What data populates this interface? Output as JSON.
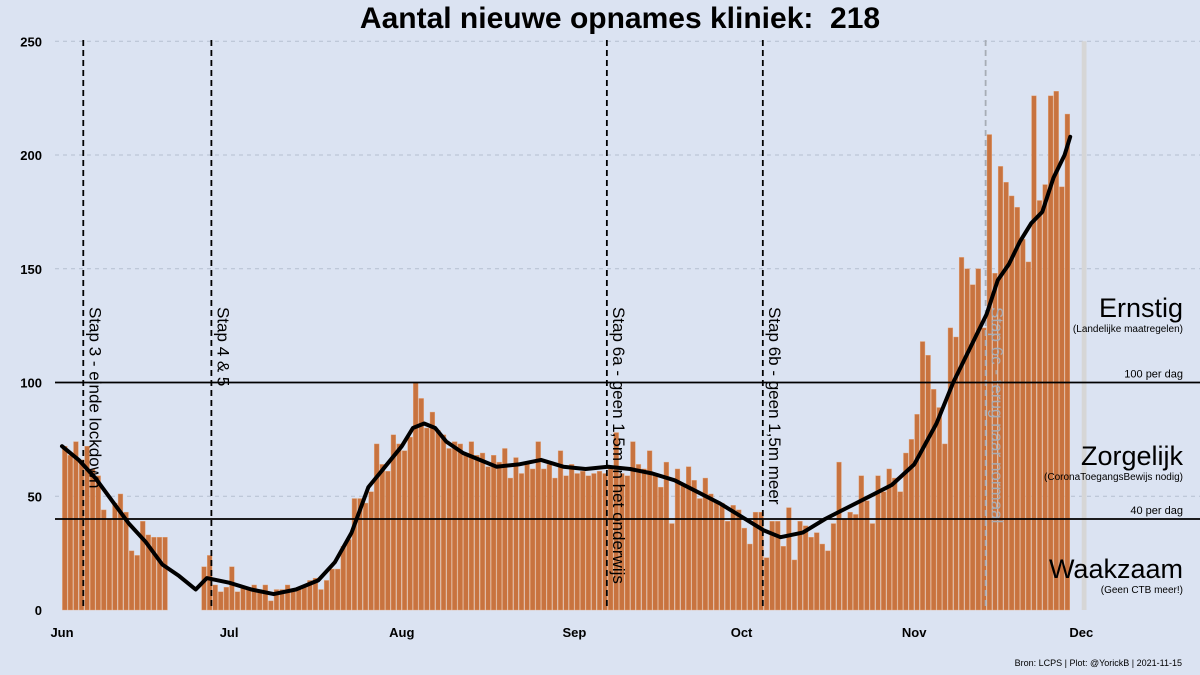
{
  "title": "Aantal nieuwe opnames kliniek:  218",
  "source": "Bron: LCPS | Plot: @YorickB |  2021-11-15",
  "colors": {
    "background": "#dbe3f2",
    "bar": "#c8733f",
    "bar_edge": "#e6a679",
    "projection": "#d6d6d6",
    "line": "#000000"
  },
  "chart_data": {
    "type": "bar",
    "x_start": "2021-06-01",
    "x_ticks": [
      "Jun",
      "Jul",
      "Aug",
      "Sep",
      "Oct",
      "Nov",
      "Dec"
    ],
    "ylim": [
      0,
      250
    ],
    "y_ticks": [
      0,
      50,
      100,
      150,
      200,
      250
    ],
    "grid": "horizontal dashed",
    "values": [
      72,
      68,
      74,
      66,
      72,
      62,
      59,
      44,
      40,
      47,
      51,
      43,
      26,
      24,
      39,
      33,
      32,
      32,
      32,
      null,
      null,
      null,
      null,
      null,
      null,
      19,
      24,
      11,
      8,
      10,
      19,
      8,
      10,
      10,
      11,
      9,
      11,
      4,
      9,
      9,
      11,
      8,
      10,
      10,
      13,
      14,
      9,
      13,
      18,
      18,
      28,
      31,
      49,
      49,
      47,
      52,
      73,
      64,
      61,
      77,
      73,
      70,
      76,
      100,
      93,
      80,
      87,
      79,
      77,
      71,
      74,
      73,
      68,
      74,
      68,
      69,
      63,
      68,
      65,
      71,
      58,
      67,
      60,
      65,
      62,
      74,
      62,
      64,
      58,
      70,
      59,
      64,
      60,
      61,
      59,
      60,
      61,
      60,
      63,
      78,
      60,
      59,
      74,
      64,
      62,
      70,
      60,
      54,
      65,
      38,
      62,
      55,
      63,
      57,
      49,
      58,
      51,
      48,
      47,
      39,
      46,
      44,
      36,
      29,
      43,
      43,
      23,
      39,
      39,
      28,
      45,
      22,
      39,
      37,
      32,
      34,
      29,
      26,
      38,
      65,
      40,
      43,
      42,
      59,
      48,
      38,
      59,
      52,
      62,
      58,
      52,
      69,
      75,
      86,
      118,
      112,
      97,
      89,
      73,
      124,
      120,
      155,
      150,
      143,
      150,
      124,
      209,
      148,
      195,
      188,
      182,
      177,
      163,
      153,
      226,
      180,
      187,
      226,
      228,
      186,
      218
    ],
    "projection": [
      null,
      null,
      null,
      null,
      null,
      null,
      null,
      null,
      null,
      null,
      null,
      null,
      null,
      null,
      null,
      null,
      null,
      null,
      null,
      null,
      null,
      null,
      null,
      null,
      null,
      null,
      null,
      null,
      null,
      null,
      null,
      null,
      null,
      null,
      null,
      null,
      null,
      null,
      null,
      null,
      null,
      null,
      null,
      null,
      null,
      null,
      null,
      null,
      null,
      null,
      null,
      null,
      null,
      null,
      null,
      null,
      null,
      null,
      null,
      null,
      null,
      null,
      null,
      null,
      null,
      null,
      null,
      null,
      null,
      null,
      null,
      null,
      null,
      null,
      null,
      null,
      null,
      null,
      null,
      null,
      null,
      null,
      null,
      null,
      null,
      null,
      null,
      null,
      null,
      null,
      null,
      null,
      null,
      null,
      null,
      null,
      null,
      null,
      null,
      null,
      null,
      null,
      null,
      null,
      null,
      null,
      null,
      null,
      null,
      null,
      null,
      null,
      null,
      null,
      null,
      null,
      null,
      null,
      null,
      null,
      null,
      null,
      null,
      null,
      null,
      null,
      null,
      null,
      null,
      null,
      null,
      null,
      null,
      null,
      null,
      null,
      null,
      null,
      null,
      null,
      null,
      null,
      null,
      null,
      null,
      null,
      null,
      null,
      null,
      null,
      null,
      null,
      null,
      null,
      null,
      null,
      null,
      null,
      null,
      null,
      null,
      null,
      null,
      null,
      null,
      null,
      null,
      null,
      null,
      null,
      null,
      null,
      null,
      null,
      null,
      null,
      null,
      null,
      null,
      null,
      null,
      null,
      null,
      250,
      null
    ],
    "average_7day": [
      {
        "day": 0,
        "v": 72
      },
      {
        "day": 3,
        "v": 66
      },
      {
        "day": 6,
        "v": 58
      },
      {
        "day": 9,
        "v": 48
      },
      {
        "day": 12,
        "v": 38
      },
      {
        "day": 15,
        "v": 30
      },
      {
        "day": 18,
        "v": 20
      },
      {
        "day": 21,
        "v": 15
      },
      {
        "day": 24,
        "v": 9
      },
      {
        "day": 26,
        "v": 14
      },
      {
        "day": 30,
        "v": 12
      },
      {
        "day": 34,
        "v": 9
      },
      {
        "day": 38,
        "v": 7
      },
      {
        "day": 42,
        "v": 9
      },
      {
        "day": 46,
        "v": 13
      },
      {
        "day": 49,
        "v": 21
      },
      {
        "day": 52,
        "v": 34
      },
      {
        "day": 55,
        "v": 54
      },
      {
        "day": 58,
        "v": 63
      },
      {
        "day": 61,
        "v": 72
      },
      {
        "day": 63,
        "v": 80
      },
      {
        "day": 65,
        "v": 82
      },
      {
        "day": 67,
        "v": 80
      },
      {
        "day": 69,
        "v": 74
      },
      {
        "day": 72,
        "v": 69
      },
      {
        "day": 75,
        "v": 66
      },
      {
        "day": 78,
        "v": 63
      },
      {
        "day": 82,
        "v": 64
      },
      {
        "day": 86,
        "v": 66
      },
      {
        "day": 90,
        "v": 63
      },
      {
        "day": 94,
        "v": 62
      },
      {
        "day": 98,
        "v": 63
      },
      {
        "day": 102,
        "v": 62
      },
      {
        "day": 106,
        "v": 60
      },
      {
        "day": 110,
        "v": 57
      },
      {
        "day": 114,
        "v": 52
      },
      {
        "day": 118,
        "v": 47
      },
      {
        "day": 122,
        "v": 41
      },
      {
        "day": 126,
        "v": 35
      },
      {
        "day": 129,
        "v": 32
      },
      {
        "day": 133,
        "v": 34
      },
      {
        "day": 137,
        "v": 40
      },
      {
        "day": 141,
        "v": 45
      },
      {
        "day": 145,
        "v": 50
      },
      {
        "day": 149,
        "v": 55
      },
      {
        "day": 153,
        "v": 64
      },
      {
        "day": 157,
        "v": 82
      },
      {
        "day": 160,
        "v": 100
      },
      {
        "day": 163,
        "v": 115
      },
      {
        "day": 166,
        "v": 130
      },
      {
        "day": 168,
        "v": 145
      },
      {
        "day": 170,
        "v": 152
      },
      {
        "day": 172,
        "v": 162
      },
      {
        "day": 174,
        "v": 170
      },
      {
        "day": 176,
        "v": 175
      },
      {
        "day": 178,
        "v": 190
      },
      {
        "day": 180,
        "v": 200
      },
      {
        "day": 181,
        "v": 208
      }
    ],
    "thresholds": [
      {
        "value": 100,
        "label": "100 per dag"
      },
      {
        "value": 40,
        "label": "40 per dag"
      }
    ],
    "events": [
      {
        "day": 4,
        "label": "Stap 3 - einde lockdown"
      },
      {
        "day": 27,
        "label": "Stap 4 & 5"
      },
      {
        "day": 98,
        "label": "Stap 6a - geen 1,5m in het onderwijs"
      },
      {
        "day": 126,
        "label": "Stap 6b - geen 1,5m meer"
      },
      {
        "day": 166,
        "label": "Stap 6c - terug naar normaal",
        "faded": true
      }
    ],
    "zones": [
      {
        "name": "Ernstig",
        "sub": "(Landelijke maatregelen)"
      },
      {
        "name": "Zorgelijk",
        "sub": "(CoronaToegangsBewijs nodig)"
      },
      {
        "name": "Waakzaam",
        "sub": "(Geen CTB meer!)"
      }
    ]
  }
}
